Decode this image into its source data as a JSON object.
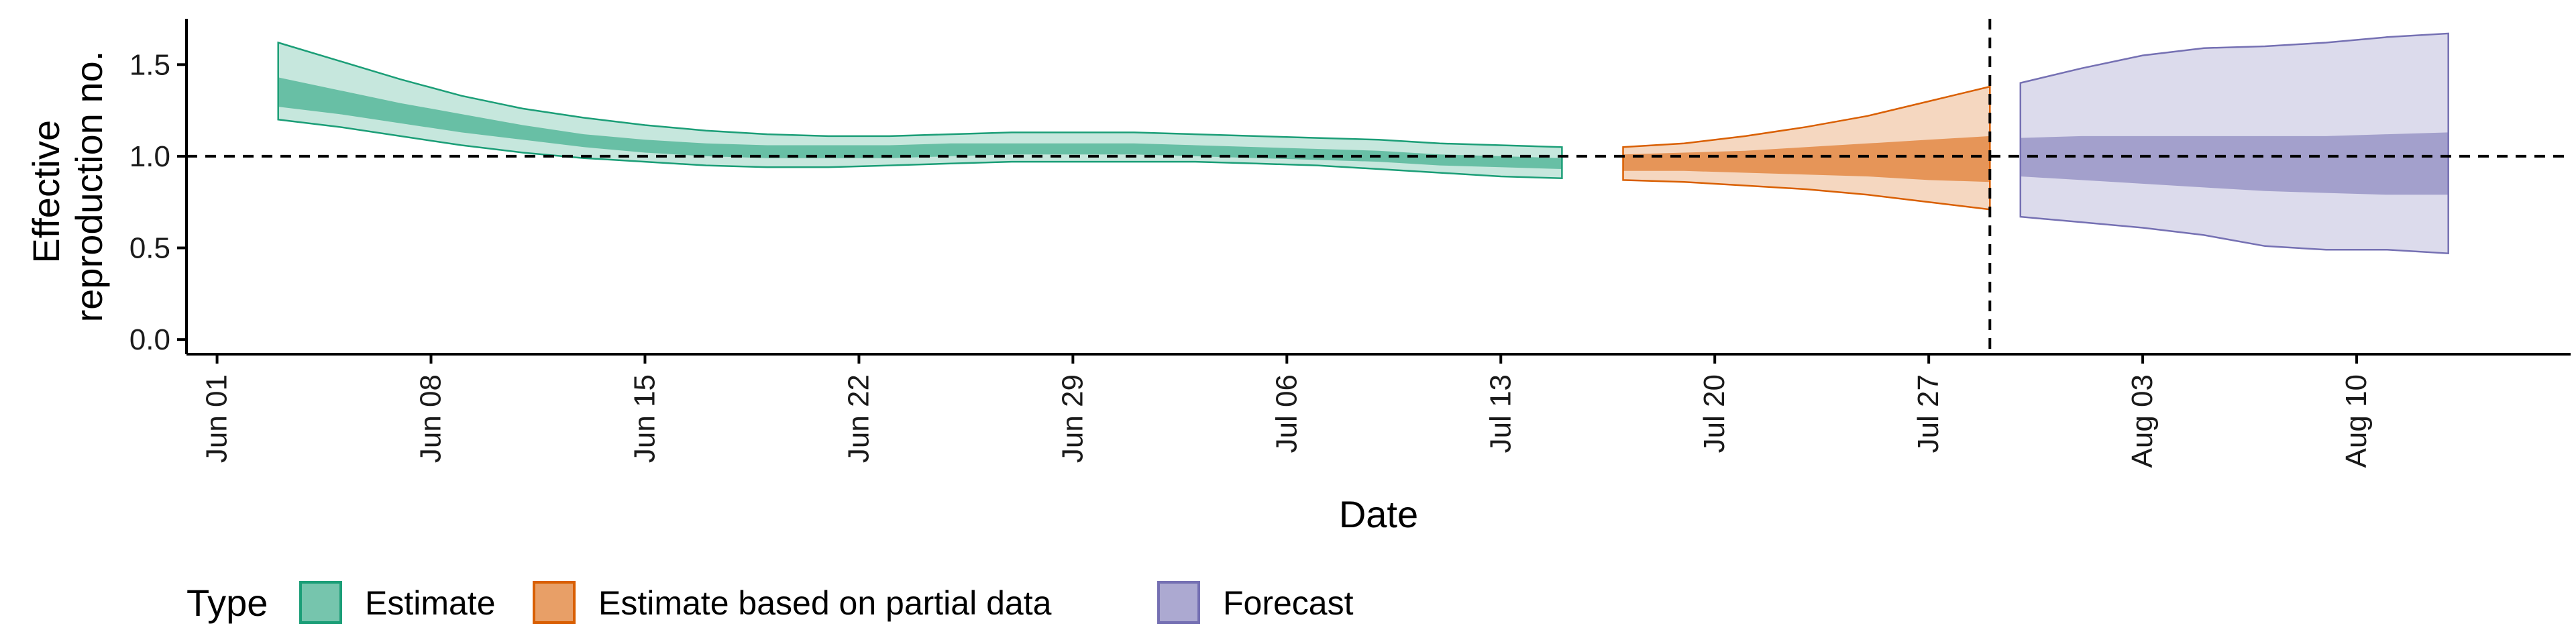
{
  "chart_data": {
    "type": "area",
    "xlabel": "Date",
    "ylabel": [
      "Effective",
      "reproduction no."
    ],
    "x_ticks": [
      "Jun 01",
      "Jun 08",
      "Jun 15",
      "Jun 22",
      "Jun 29",
      "Jul 06",
      "Jul 13",
      "Jul 20",
      "Jul 27",
      "Aug 03",
      "Aug 10"
    ],
    "x_tick_dates": [
      "2020-06-01",
      "2020-06-08",
      "2020-06-15",
      "2020-06-22",
      "2020-06-29",
      "2020-07-06",
      "2020-07-13",
      "2020-07-20",
      "2020-07-27",
      "2020-08-03",
      "2020-08-10"
    ],
    "xlim": [
      "2020-05-31",
      "2020-08-17"
    ],
    "ylim": [
      -0.08,
      1.75
    ],
    "y_ticks": [
      0.0,
      0.5,
      1.0,
      1.5
    ],
    "y_tick_labels": [
      "0.0",
      "0.5",
      "1.0",
      "1.5"
    ],
    "reference_line_y": 1.0,
    "reference_line_x": "2020-07-29",
    "legend_title": "Type",
    "legend_position": "bottom",
    "series": [
      {
        "name": "Estimate",
        "color": "#1b9e77",
        "dates": [
          "2020-06-03",
          "2020-06-05",
          "2020-06-07",
          "2020-06-09",
          "2020-06-11",
          "2020-06-13",
          "2020-06-15",
          "2020-06-17",
          "2020-06-19",
          "2020-06-21",
          "2020-06-23",
          "2020-06-25",
          "2020-06-27",
          "2020-06-29",
          "2020-07-01",
          "2020-07-03",
          "2020-07-05",
          "2020-07-07",
          "2020-07-09",
          "2020-07-11",
          "2020-07-13",
          "2020-07-15"
        ],
        "lower_90": [
          1.2,
          1.16,
          1.11,
          1.06,
          1.02,
          0.99,
          0.97,
          0.95,
          0.94,
          0.94,
          0.95,
          0.96,
          0.97,
          0.97,
          0.97,
          0.97,
          0.96,
          0.95,
          0.93,
          0.91,
          0.89,
          0.88
        ],
        "lower_50": [
          1.27,
          1.23,
          1.18,
          1.13,
          1.09,
          1.05,
          1.02,
          1.0,
          0.99,
          0.99,
          0.99,
          1.0,
          1.01,
          1.01,
          1.01,
          1.0,
          0.99,
          0.98,
          0.97,
          0.95,
          0.94,
          0.93
        ],
        "upper_50": [
          1.43,
          1.36,
          1.29,
          1.23,
          1.17,
          1.12,
          1.09,
          1.07,
          1.06,
          1.06,
          1.06,
          1.07,
          1.07,
          1.07,
          1.07,
          1.06,
          1.05,
          1.04,
          1.03,
          1.01,
          1.0,
          0.99
        ],
        "upper_90": [
          1.62,
          1.52,
          1.42,
          1.33,
          1.26,
          1.21,
          1.17,
          1.14,
          1.12,
          1.11,
          1.11,
          1.12,
          1.13,
          1.13,
          1.13,
          1.12,
          1.11,
          1.1,
          1.09,
          1.07,
          1.06,
          1.05
        ]
      },
      {
        "name": "Estimate based on partial data",
        "color": "#d95f02",
        "dates": [
          "2020-07-17",
          "2020-07-19",
          "2020-07-21",
          "2020-07-23",
          "2020-07-25",
          "2020-07-27",
          "2020-07-29"
        ],
        "lower_90": [
          0.87,
          0.86,
          0.84,
          0.82,
          0.79,
          0.75,
          0.71
        ],
        "lower_50": [
          0.92,
          0.92,
          0.91,
          0.9,
          0.89,
          0.87,
          0.86
        ],
        "upper_50": [
          1.01,
          1.02,
          1.03,
          1.05,
          1.07,
          1.09,
          1.11
        ],
        "upper_90": [
          1.05,
          1.07,
          1.11,
          1.16,
          1.22,
          1.3,
          1.38
        ]
      },
      {
        "name": "Forecast",
        "color": "#7570b3",
        "dates": [
          "2020-07-30",
          "2020-08-01",
          "2020-08-03",
          "2020-08-05",
          "2020-08-07",
          "2020-08-09",
          "2020-08-11",
          "2020-08-13"
        ],
        "lower_90": [
          0.67,
          0.64,
          0.61,
          0.57,
          0.51,
          0.49,
          0.49,
          0.47
        ],
        "lower_50": [
          0.89,
          0.87,
          0.85,
          0.83,
          0.81,
          0.8,
          0.79,
          0.79
        ],
        "upper_50": [
          1.1,
          1.11,
          1.11,
          1.11,
          1.11,
          1.11,
          1.12,
          1.13
        ],
        "upper_90": [
          1.4,
          1.48,
          1.55,
          1.59,
          1.6,
          1.62,
          1.65,
          1.67
        ]
      }
    ]
  }
}
